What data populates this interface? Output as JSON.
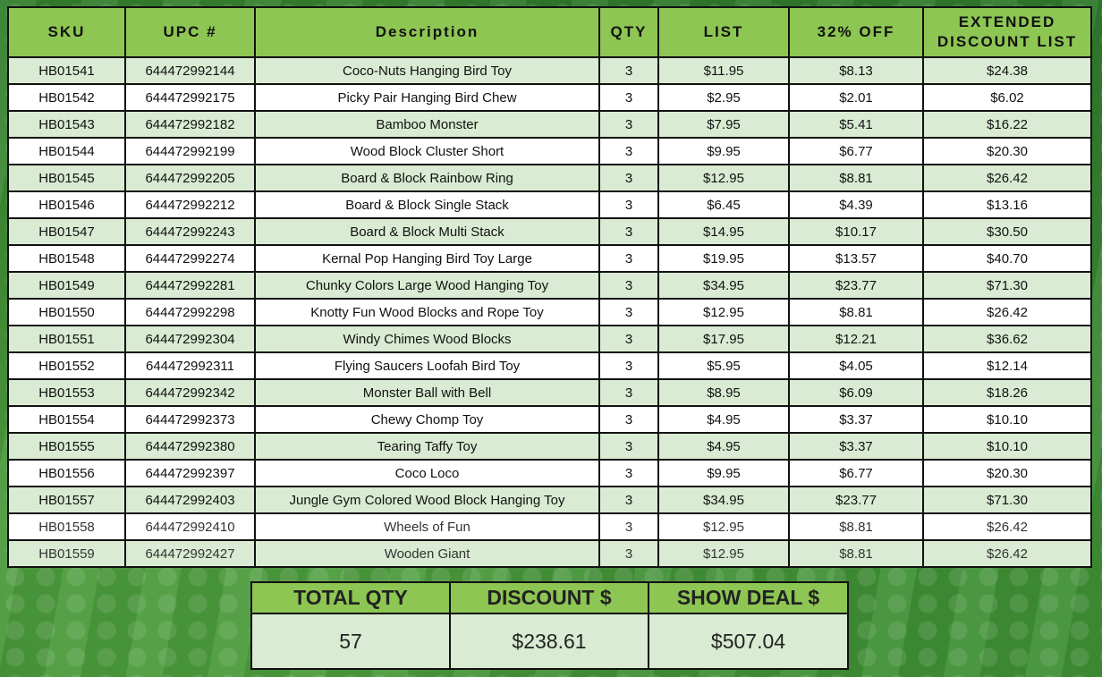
{
  "table": {
    "headers": {
      "sku": "SKU",
      "upc": "UPC #",
      "description": "Description",
      "qty": "QTY",
      "list": "LIST",
      "off": "32% OFF",
      "extended_line1": "EXTENDED",
      "extended_line2": "DISCOUNT LIST"
    },
    "rows": [
      {
        "sku": "HB01541",
        "upc": "644472992144",
        "description": "Coco-Nuts Hanging Bird Toy",
        "qty": "3",
        "list": "$11.95",
        "off": "$8.13",
        "extended": "$24.38"
      },
      {
        "sku": "HB01542",
        "upc": "644472992175",
        "description": "Picky Pair Hanging Bird Chew",
        "qty": "3",
        "list": "$2.95",
        "off": "$2.01",
        "extended": "$6.02"
      },
      {
        "sku": "HB01543",
        "upc": "644472992182",
        "description": "Bamboo Monster",
        "qty": "3",
        "list": "$7.95",
        "off": "$5.41",
        "extended": "$16.22"
      },
      {
        "sku": "HB01544",
        "upc": "644472992199",
        "description": "Wood Block Cluster Short",
        "qty": "3",
        "list": "$9.95",
        "off": "$6.77",
        "extended": "$20.30"
      },
      {
        "sku": "HB01545",
        "upc": "644472992205",
        "description": "Board & Block Rainbow Ring",
        "qty": "3",
        "list": "$12.95",
        "off": "$8.81",
        "extended": "$26.42"
      },
      {
        "sku": "HB01546",
        "upc": "644472992212",
        "description": "Board & Block Single Stack",
        "qty": "3",
        "list": "$6.45",
        "off": "$4.39",
        "extended": "$13.16"
      },
      {
        "sku": "HB01547",
        "upc": "644472992243",
        "description": "Board & Block Multi Stack",
        "qty": "3",
        "list": "$14.95",
        "off": "$10.17",
        "extended": "$30.50"
      },
      {
        "sku": "HB01548",
        "upc": "644472992274",
        "description": "Kernal Pop Hanging Bird Toy Large",
        "qty": "3",
        "list": "$19.95",
        "off": "$13.57",
        "extended": "$40.70"
      },
      {
        "sku": "HB01549",
        "upc": "644472992281",
        "description": "Chunky Colors Large Wood Hanging Toy",
        "qty": "3",
        "list": "$34.95",
        "off": "$23.77",
        "extended": "$71.30"
      },
      {
        "sku": "HB01550",
        "upc": "644472992298",
        "description": "Knotty Fun Wood Blocks and Rope Toy",
        "qty": "3",
        "list": "$12.95",
        "off": "$8.81",
        "extended": "$26.42"
      },
      {
        "sku": "HB01551",
        "upc": "644472992304",
        "description": "Windy Chimes Wood Blocks",
        "qty": "3",
        "list": "$17.95",
        "off": "$12.21",
        "extended": "$36.62"
      },
      {
        "sku": "HB01552",
        "upc": "644472992311",
        "description": "Flying Saucers Loofah Bird Toy",
        "qty": "3",
        "list": "$5.95",
        "off": "$4.05",
        "extended": "$12.14"
      },
      {
        "sku": "HB01553",
        "upc": "644472992342",
        "description": "Monster Ball with Bell",
        "qty": "3",
        "list": "$8.95",
        "off": "$6.09",
        "extended": "$18.26"
      },
      {
        "sku": "HB01554",
        "upc": "644472992373",
        "description": "Chewy Chomp Toy",
        "qty": "3",
        "list": "$4.95",
        "off": "$3.37",
        "extended": "$10.10"
      },
      {
        "sku": "HB01555",
        "upc": "644472992380",
        "description": "Tearing Taffy Toy",
        "qty": "3",
        "list": "$4.95",
        "off": "$3.37",
        "extended": "$10.10"
      },
      {
        "sku": "HB01556",
        "upc": "644472992397",
        "description": "Coco Loco",
        "qty": "3",
        "list": "$9.95",
        "off": "$6.77",
        "extended": "$20.30"
      },
      {
        "sku": "HB01557",
        "upc": "644472992403",
        "description": "Jungle Gym Colored Wood Block Hanging Toy",
        "qty": "3",
        "list": "$34.95",
        "off": "$23.77",
        "extended": "$71.30"
      },
      {
        "sku": "HB01558",
        "upc": "644472992410",
        "description": "Wheels of Fun",
        "qty": "3",
        "list": "$12.95",
        "off": "$8.81",
        "extended": "$26.42"
      },
      {
        "sku": "HB01559",
        "upc": "644472992427",
        "description": "Wooden Giant",
        "qty": "3",
        "list": "$12.95",
        "off": "$8.81",
        "extended": "$26.42"
      }
    ]
  },
  "summary": {
    "total_qty_label": "TOTAL QTY",
    "discount_label": "DISCOUNT $",
    "show_deal_label": "SHOW DEAL $",
    "total_qty_value": "57",
    "discount_value": "$238.61",
    "show_deal_value": "$507.04"
  },
  "colors": {
    "header_green": "#8dc653",
    "row_light_green": "#d9ebd2",
    "background_green": "#2f7a2c"
  }
}
